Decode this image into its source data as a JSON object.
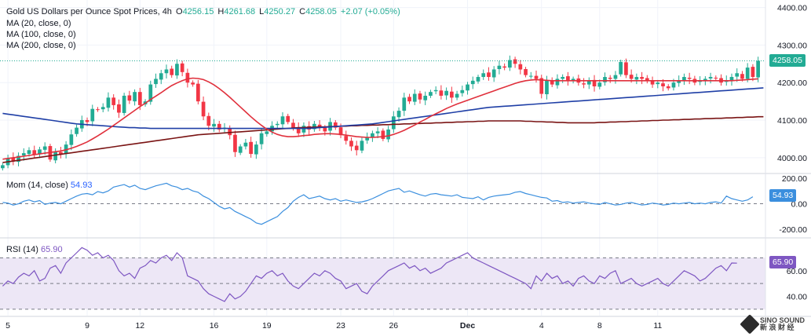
{
  "legend": {
    "title": "Gold US Dollars per Ounce Spot Prices, 4h",
    "o_label": "O",
    "o_value": "4256.15",
    "h_label": "H",
    "h_value": "4261.68",
    "l_label": "L",
    "l_value": "4250.27",
    "c_label": "C",
    "c_value": "4258.05",
    "change": "+2.07 (+0.05%)",
    "ma20": "MA (20, close, 0)",
    "ma100": "MA (100, close, 0)",
    "ma200": "MA (200, close, 0)"
  },
  "mom_legend": {
    "label": "Mom (14, close)",
    "value": "54.93"
  },
  "rsi_legend": {
    "label": "RSI (14)",
    "value": "65.90"
  },
  "tags": {
    "price": "4258.05",
    "mom": "54.93",
    "rsi": "65.90"
  },
  "colors": {
    "up": "#22ab94",
    "down": "#f23645",
    "ma20": "#e0303c",
    "ma100": "#1f3fa6",
    "ma200": "#7a1414",
    "mom": "#3b8fde",
    "rsi": "#7e57c2",
    "rsi_band": "#ede7f6",
    "grid": "#f0f3fa",
    "axis_text": "#131722",
    "price_tag": "#22ab94"
  },
  "watermark": {
    "text1": "SINO SOUND",
    "text2": "新 浪 财 经"
  },
  "chart_data": [
    {
      "type": "candlestick",
      "title": "Gold US Dollars per Ounce Spot Prices, 4h",
      "x_tick_labels": [
        "5",
        "9",
        "12",
        "16",
        "19",
        "23",
        "26",
        "Dec",
        "4",
        "8",
        "11"
      ],
      "y_tick_labels": [
        "4400.00",
        "4300.00",
        "4200.00",
        "4100.00",
        "4000.00"
      ],
      "ylim": [
        3960,
        4420
      ],
      "last_close": 4258.05,
      "closes": [
        3980,
        3998,
        3990,
        4005,
        4012,
        4020,
        4008,
        4022,
        4030,
        3995,
        4015,
        4008,
        4035,
        4062,
        4080,
        4100,
        4095,
        4130,
        4128,
        4135,
        4160,
        4140,
        4120,
        4165,
        4152,
        4175,
        4140,
        4150,
        4195,
        4210,
        4225,
        4235,
        4220,
        4250,
        4228,
        4200,
        4195,
        4150,
        4110,
        4085,
        4090,
        4075,
        4080,
        4060,
        4015,
        4030,
        4040,
        4010,
        4035,
        4065,
        4070,
        4085,
        4090,
        4110,
        4095,
        4080,
        4065,
        4085,
        4075,
        4090,
        4080,
        4070,
        4095,
        4080,
        4060,
        4045,
        4030,
        4020,
        4045,
        4055,
        4065,
        4070,
        4050,
        4075,
        4110,
        4125,
        4160,
        4150,
        4170,
        4155,
        4165,
        4175,
        4180,
        4165,
        4178,
        4160,
        4170,
        4180,
        4195,
        4205,
        4215,
        4225,
        4215,
        4235,
        4245,
        4240,
        4260,
        4250,
        4235,
        4220,
        4218,
        4210,
        4170,
        4205,
        4195,
        4210,
        4215,
        4205,
        4210,
        4200,
        4195,
        4205,
        4190,
        4200,
        4215,
        4210,
        4220,
        4255,
        4220,
        4210,
        4215,
        4210,
        4205,
        4195,
        4200,
        4190,
        4185,
        4200,
        4205,
        4215,
        4210,
        4200,
        4205,
        4210,
        4215,
        4212,
        4200,
        4205,
        4215,
        4225,
        4210,
        4240,
        4215,
        4258
      ],
      "ma20": [
        3996,
        3998,
        4000,
        4002,
        4004,
        4006,
        4008,
        4010,
        4012,
        4014,
        4016,
        4018,
        4021,
        4025,
        4030,
        4036,
        4042,
        4050,
        4058,
        4067,
        4076,
        4086,
        4096,
        4106,
        4116,
        4126,
        4136,
        4145,
        4155,
        4164,
        4173,
        4183,
        4192,
        4199,
        4205,
        4210,
        4212,
        4211,
        4208,
        4202,
        4194,
        4184,
        4173,
        4161,
        4148,
        4135,
        4122,
        4109,
        4097,
        4086,
        4076,
        4068,
        4062,
        4058,
        4056,
        4056,
        4057,
        4059,
        4060,
        4062,
        4063,
        4064,
        4064,
        4063,
        4062,
        4060,
        4058,
        4056,
        4055,
        4054,
        4054,
        4055,
        4056,
        4058,
        4062,
        4067,
        4073,
        4080,
        4087,
        4095,
        4102,
        4110,
        4117,
        4124,
        4131,
        4137,
        4143,
        4148,
        4153,
        4158,
        4163,
        4168,
        4173,
        4178,
        4183,
        4188,
        4193,
        4198,
        4202,
        4205,
        4207,
        4208,
        4207,
        4206,
        4205,
        4205,
        4205,
        4205,
        4205,
        4205,
        4205,
        4205,
        4205,
        4205,
        4205,
        4205,
        4205,
        4205,
        4205,
        4205,
        4205,
        4205,
        4205,
        4205,
        4205,
        4205,
        4205,
        4205,
        4205,
        4205,
        4205,
        4205,
        4205,
        4205,
        4205,
        4205,
        4205,
        4205,
        4205,
        4206,
        4207,
        4208,
        4209,
        4210
      ],
      "ma100": [
        4118,
        4116,
        4114,
        4112,
        4110,
        4108,
        4106,
        4104,
        4102,
        4100,
        4098,
        4096,
        4094,
        4092,
        4090,
        4089,
        4088,
        4087,
        4086,
        4085,
        4084,
        4083,
        4082,
        4081,
        4080,
        4080,
        4079,
        4079,
        4078,
        4078,
        4078,
        4078,
        4078,
        4078,
        4078,
        4078,
        4078,
        4078,
        4078,
        4078,
        4078,
        4078,
        4078,
        4078,
        4078,
        4078,
        4078,
        4078,
        4078,
        4078,
        4078,
        4078,
        4078,
        4078,
        4078,
        4078,
        4078,
        4078,
        4078,
        4079,
        4080,
        4081,
        4082,
        4083,
        4084,
        4085,
        4086,
        4087,
        4088,
        4089,
        4090,
        4092,
        4094,
        4096,
        4098,
        4100,
        4102,
        4104,
        4106,
        4108,
        4110,
        4112,
        4114,
        4116,
        4118,
        4120,
        4122,
        4124,
        4126,
        4128,
        4130,
        4132,
        4134,
        4135,
        4136,
        4137,
        4138,
        4139,
        4140,
        4141,
        4142,
        4143,
        4144,
        4145,
        4146,
        4147,
        4148,
        4149,
        4150,
        4151,
        4152,
        4153,
        4154,
        4155,
        4156,
        4157,
        4158,
        4159,
        4160,
        4161,
        4162,
        4163,
        4164,
        4165,
        4166,
        4167,
        4168,
        4169,
        4170,
        4171,
        4172,
        4173,
        4174,
        4175,
        4176,
        4177,
        4178,
        4179,
        4180,
        4181,
        4182,
        4183,
        4184,
        4185,
        4186
      ],
      "ma200": [
        3987,
        3989,
        3991,
        3993,
        3995,
        3997,
        3999,
        4001,
        4003,
        4005,
        4007,
        4009,
        4011,
        4013,
        4015,
        4017,
        4019,
        4021,
        4023,
        4025,
        4027,
        4029,
        4031,
        4033,
        4035,
        4037,
        4039,
        4041,
        4043,
        4045,
        4047,
        4049,
        4051,
        4053,
        4055,
        4057,
        4059,
        4061,
        4062,
        4063,
        4064,
        4065,
        4066,
        4067,
        4068,
        4069,
        4070,
        4071,
        4072,
        4073,
        4074,
        4075,
        4076,
        4077,
        4078,
        4079,
        4080,
        4080,
        4081,
        4081,
        4082,
        4082,
        4083,
        4083,
        4084,
        4084,
        4085,
        4085,
        4086,
        4086,
        4087,
        4087,
        4088,
        4088,
        4089,
        4089,
        4090,
        4090,
        4091,
        4091,
        4092,
        4092,
        4093,
        4093,
        4094,
        4094,
        4095,
        4095,
        4096,
        4096,
        4097,
        4097,
        4098,
        4098,
        4098,
        4098,
        4098,
        4098,
        4098,
        4097,
        4097,
        4096,
        4096,
        4095,
        4095,
        4094,
        4094,
        4093,
        4093,
        4093,
        4093,
        4093,
        4093,
        4094,
        4094,
        4095,
        4095,
        4096,
        4096,
        4097,
        4097,
        4098,
        4098,
        4099,
        4099,
        4100,
        4100,
        4101,
        4101,
        4102,
        4102,
        4103,
        4103,
        4104,
        4104,
        4105,
        4105,
        4106,
        4106,
        4107,
        4107,
        4108,
        4108,
        4109,
        4109
      ]
    },
    {
      "type": "line",
      "title": "Mom (14, close)",
      "y_tick_labels": [
        "200.00",
        "0.00",
        "-200.00"
      ],
      "ylim": [
        -260,
        230
      ],
      "last_value": 54.93,
      "values": [
        10,
        5,
        -10,
        0,
        20,
        30,
        15,
        25,
        -5,
        5,
        10,
        0,
        20,
        40,
        60,
        75,
        80,
        70,
        95,
        85,
        100,
        130,
        140,
        150,
        130,
        145,
        120,
        110,
        125,
        140,
        150,
        160,
        140,
        130,
        110,
        120,
        100,
        90,
        60,
        40,
        10,
        -20,
        -40,
        -30,
        -60,
        -80,
        -100,
        -120,
        -150,
        -160,
        -140,
        -120,
        -100,
        -60,
        -30,
        20,
        50,
        70,
        40,
        50,
        60,
        40,
        30,
        40,
        20,
        30,
        20,
        10,
        15,
        25,
        40,
        60,
        80,
        100,
        110,
        120,
        90,
        100,
        85,
        70,
        60,
        75,
        80,
        70,
        65,
        60,
        70,
        50,
        45,
        40,
        55,
        30,
        50,
        60,
        65,
        70,
        75,
        90,
        95,
        80,
        70,
        60,
        50,
        45,
        20,
        25,
        10,
        15,
        5,
        10,
        15,
        5,
        0,
        -5,
        10,
        0,
        -10,
        -5,
        5,
        10,
        0,
        -10,
        -5,
        5,
        0,
        -10,
        -5,
        5,
        0,
        5,
        10,
        0,
        5,
        0,
        10,
        15,
        5,
        60,
        40,
        30,
        20,
        30,
        55
      ],
      "ref_lines": [
        0
      ]
    },
    {
      "type": "line",
      "title": "RSI (14)",
      "y_tick_labels": [
        "60.00",
        "40.00"
      ],
      "ylim": [
        25,
        85
      ],
      "band": [
        30,
        70
      ],
      "last_value": 65.9,
      "values": [
        48,
        52,
        50,
        55,
        58,
        56,
        60,
        52,
        54,
        62,
        64,
        58,
        66,
        70,
        74,
        78,
        76,
        72,
        74,
        70,
        72,
        68,
        60,
        56,
        58,
        54,
        62,
        64,
        68,
        66,
        70,
        72,
        68,
        74,
        70,
        56,
        54,
        52,
        46,
        42,
        40,
        38,
        36,
        42,
        38,
        40,
        44,
        50,
        56,
        54,
        58,
        60,
        56,
        58,
        52,
        48,
        46,
        50,
        54,
        58,
        56,
        60,
        58,
        54,
        52,
        46,
        48,
        50,
        44,
        42,
        48,
        52,
        56,
        60,
        62,
        64,
        66,
        62,
        64,
        60,
        62,
        58,
        60,
        62,
        66,
        68,
        70,
        72,
        74,
        70,
        68,
        66,
        64,
        62,
        60,
        58,
        56,
        54,
        52,
        50,
        46,
        56,
        52,
        58,
        54,
        56,
        50,
        52,
        48,
        54,
        56,
        52,
        50,
        56,
        54,
        58,
        60,
        50,
        52,
        54,
        50,
        48,
        50,
        52,
        54,
        50,
        48,
        52,
        56,
        60,
        58,
        56,
        52,
        54,
        58,
        62,
        64,
        60,
        66,
        65.9
      ]
    }
  ]
}
